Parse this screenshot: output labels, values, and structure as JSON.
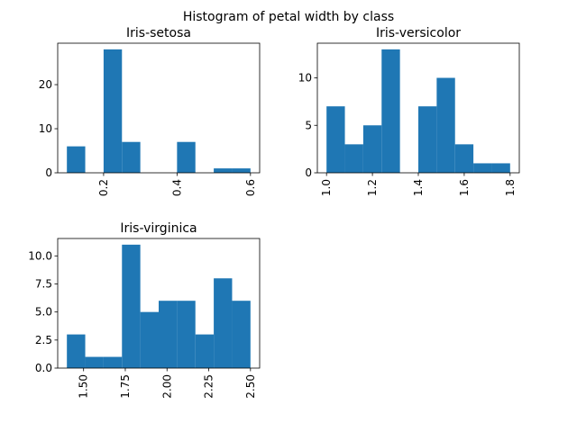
{
  "figure": {
    "suptitle": "Histogram of petal width by class",
    "bar_color": "#1f77b4"
  },
  "chart_data": [
    {
      "type": "bar",
      "title": "Iris-setosa",
      "xlabel": "",
      "ylabel": "",
      "bins": [
        {
          "x0": 0.1,
          "x1": 0.15,
          "count": 6
        },
        {
          "x0": 0.15,
          "x1": 0.2,
          "count": 0
        },
        {
          "x0": 0.2,
          "x1": 0.25,
          "count": 28
        },
        {
          "x0": 0.25,
          "x1": 0.3,
          "count": 7
        },
        {
          "x0": 0.3,
          "x1": 0.35,
          "count": 0
        },
        {
          "x0": 0.35,
          "x1": 0.4,
          "count": 0
        },
        {
          "x0": 0.4,
          "x1": 0.45,
          "count": 7
        },
        {
          "x0": 0.45,
          "x1": 0.5,
          "count": 0
        },
        {
          "x0": 0.5,
          "x1": 0.55,
          "count": 1
        },
        {
          "x0": 0.55,
          "x1": 0.6,
          "count": 1
        }
      ],
      "xlim": [
        0.075,
        0.625
      ],
      "ylim": [
        0,
        29.4
      ],
      "xticks": [
        {
          "v": 0.2,
          "label": "0.2"
        },
        {
          "v": 0.4,
          "label": "0.4"
        },
        {
          "v": 0.6,
          "label": "0.6"
        }
      ],
      "yticks": [
        {
          "v": 0,
          "label": "0"
        },
        {
          "v": 10,
          "label": "10"
        },
        {
          "v": 20,
          "label": "20"
        }
      ],
      "x_tick_rotation": 90
    },
    {
      "type": "bar",
      "title": "Iris-versicolor",
      "xlabel": "",
      "ylabel": "",
      "bins": [
        {
          "x0": 1.0,
          "x1": 1.08,
          "count": 7
        },
        {
          "x0": 1.08,
          "x1": 1.16,
          "count": 3
        },
        {
          "x0": 1.16,
          "x1": 1.24,
          "count": 5
        },
        {
          "x0": 1.24,
          "x1": 1.32,
          "count": 13
        },
        {
          "x0": 1.32,
          "x1": 1.4,
          "count": 0
        },
        {
          "x0": 1.4,
          "x1": 1.48,
          "count": 7
        },
        {
          "x0": 1.48,
          "x1": 1.56,
          "count": 10
        },
        {
          "x0": 1.56,
          "x1": 1.64,
          "count": 3
        },
        {
          "x0": 1.64,
          "x1": 1.72,
          "count": 1
        },
        {
          "x0": 1.72,
          "x1": 1.8,
          "count": 1
        }
      ],
      "xlim": [
        0.96,
        1.84
      ],
      "ylim": [
        0,
        13.65
      ],
      "xticks": [
        {
          "v": 1.0,
          "label": "1.0"
        },
        {
          "v": 1.2,
          "label": "1.2"
        },
        {
          "v": 1.4,
          "label": "1.4"
        },
        {
          "v": 1.6,
          "label": "1.6"
        },
        {
          "v": 1.8,
          "label": "1.8"
        }
      ],
      "yticks": [
        {
          "v": 0,
          "label": "0"
        },
        {
          "v": 5,
          "label": "5"
        },
        {
          "v": 10,
          "label": "10"
        }
      ],
      "x_tick_rotation": 90
    },
    {
      "type": "bar",
      "title": "Iris-virginica",
      "xlabel": "",
      "ylabel": "",
      "bins": [
        {
          "x0": 1.4,
          "x1": 1.51,
          "count": 3
        },
        {
          "x0": 1.51,
          "x1": 1.62,
          "count": 1
        },
        {
          "x0": 1.62,
          "x1": 1.73,
          "count": 1
        },
        {
          "x0": 1.73,
          "x1": 1.84,
          "count": 11
        },
        {
          "x0": 1.84,
          "x1": 1.95,
          "count": 5
        },
        {
          "x0": 1.95,
          "x1": 2.06,
          "count": 6
        },
        {
          "x0": 2.06,
          "x1": 2.17,
          "count": 6
        },
        {
          "x0": 2.17,
          "x1": 2.28,
          "count": 3
        },
        {
          "x0": 2.28,
          "x1": 2.39,
          "count": 8
        },
        {
          "x0": 2.39,
          "x1": 2.5,
          "count": 6
        }
      ],
      "xlim": [
        1.345,
        2.555
      ],
      "ylim": [
        0,
        11.55
      ],
      "xticks": [
        {
          "v": 1.5,
          "label": "1.50"
        },
        {
          "v": 1.75,
          "label": "1.75"
        },
        {
          "v": 2.0,
          "label": "2.00"
        },
        {
          "v": 2.25,
          "label": "2.25"
        },
        {
          "v": 2.5,
          "label": "2.50"
        }
      ],
      "yticks": [
        {
          "v": 0,
          "label": "0.0"
        },
        {
          "v": 2.5,
          "label": "2.5"
        },
        {
          "v": 5,
          "label": "5.0"
        },
        {
          "v": 7.5,
          "label": "7.5"
        },
        {
          "v": 10,
          "label": "10.0"
        }
      ],
      "x_tick_rotation": 90
    }
  ]
}
